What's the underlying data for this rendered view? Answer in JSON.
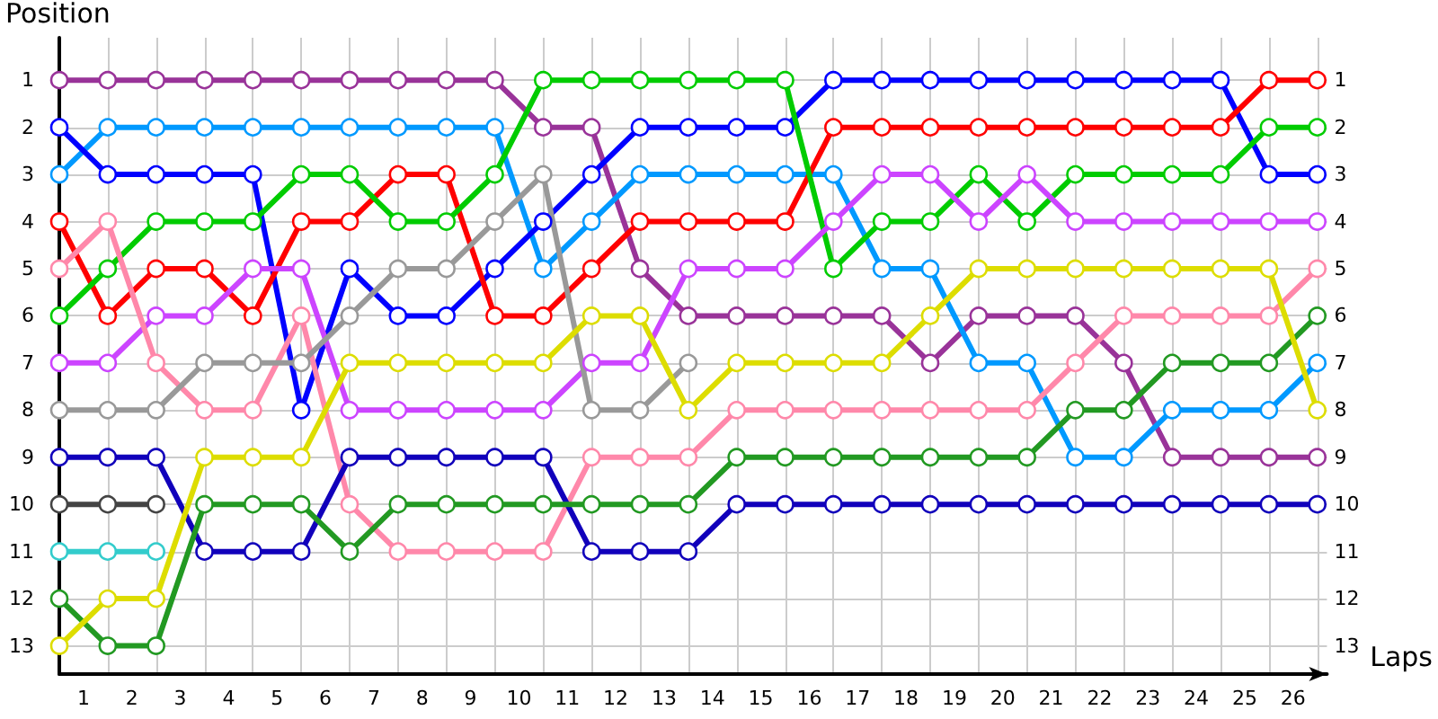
{
  "chart_data": {
    "type": "line",
    "xlabel": "Laps",
    "ylabel": "Position",
    "x": [
      0,
      1,
      2,
      3,
      4,
      5,
      6,
      7,
      8,
      9,
      10,
      11,
      12,
      13,
      14,
      15,
      16,
      17,
      18,
      19,
      20,
      21,
      22,
      23,
      24,
      25,
      26
    ],
    "series": [
      {
        "color": "#993399",
        "values": [
          1,
          1,
          1,
          1,
          1,
          1,
          1,
          1,
          1,
          1,
          2,
          2,
          5,
          6,
          6,
          6,
          6,
          6,
          7,
          6,
          6,
          6,
          7,
          9,
          9,
          9,
          9
        ]
      },
      {
        "color": "#0099ff",
        "values": [
          3,
          2,
          2,
          2,
          2,
          2,
          2,
          2,
          2,
          2,
          5,
          4,
          3,
          3,
          3,
          3,
          3,
          5,
          5,
          7,
          7,
          9,
          9,
          8,
          8,
          8,
          7
        ]
      },
      {
        "color": "#0000ff",
        "values": [
          2,
          3,
          3,
          3,
          3,
          8,
          5,
          6,
          6,
          5,
          4,
          3,
          2,
          2,
          2,
          2,
          1,
          1,
          1,
          1,
          1,
          1,
          1,
          1,
          1,
          3,
          3
        ]
      },
      {
        "color": "#ff0000",
        "values": [
          4,
          6,
          5,
          5,
          6,
          4,
          4,
          3,
          3,
          6,
          6,
          5,
          4,
          4,
          4,
          4,
          2,
          2,
          2,
          2,
          2,
          2,
          2,
          2,
          2,
          1,
          1
        ]
      },
      {
        "color": "#00cc00",
        "values": [
          6,
          5,
          4,
          4,
          4,
          3,
          3,
          4,
          4,
          3,
          1,
          1,
          1,
          1,
          1,
          1,
          5,
          4,
          4,
          3,
          4,
          3,
          3,
          3,
          3,
          2,
          2
        ]
      },
      {
        "color": "#cc44ff",
        "values": [
          7,
          7,
          6,
          6,
          5,
          5,
          8,
          8,
          8,
          8,
          8,
          7,
          7,
          5,
          5,
          5,
          4,
          3,
          3,
          4,
          3,
          4,
          4,
          4,
          4,
          4,
          4
        ]
      },
      {
        "color": "#ff88aa",
        "values": [
          5,
          4,
          7,
          8,
          8,
          6,
          10,
          11,
          11,
          11,
          11,
          9,
          9,
          9,
          8,
          8,
          8,
          8,
          8,
          8,
          8,
          7,
          6,
          6,
          6,
          6,
          5
        ]
      },
      {
        "color": "#999999",
        "values": [
          8,
          8,
          8,
          7,
          7,
          7,
          6,
          5,
          5,
          4,
          3,
          8,
          8,
          7,
          null,
          null,
          null,
          null,
          null,
          null,
          null,
          null,
          null,
          null,
          null,
          null,
          null
        ]
      },
      {
        "color": "#1100bb",
        "values": [
          9,
          9,
          9,
          11,
          11,
          11,
          9,
          9,
          9,
          9,
          9,
          11,
          11,
          11,
          10,
          10,
          10,
          10,
          10,
          10,
          10,
          10,
          10,
          10,
          10,
          10,
          10
        ]
      },
      {
        "color": "#444444",
        "values": [
          10,
          10,
          10,
          null,
          null,
          null,
          null,
          null,
          null,
          null,
          null,
          null,
          null,
          null,
          null,
          null,
          null,
          null,
          null,
          null,
          null,
          null,
          null,
          null,
          null,
          null,
          null
        ]
      },
      {
        "color": "#33cccc",
        "values": [
          11,
          11,
          11,
          null,
          null,
          null,
          null,
          null,
          null,
          null,
          null,
          null,
          null,
          null,
          null,
          null,
          null,
          null,
          null,
          null,
          null,
          null,
          null,
          null,
          null,
          null,
          null
        ]
      },
      {
        "color": "#229922",
        "values": [
          12,
          13,
          13,
          10,
          10,
          10,
          11,
          10,
          10,
          10,
          10,
          10,
          10,
          10,
          9,
          9,
          9,
          9,
          9,
          9,
          9,
          8,
          8,
          7,
          7,
          7,
          6
        ]
      },
      {
        "color": "#dddd00",
        "values": [
          13,
          12,
          12,
          9,
          9,
          9,
          7,
          7,
          7,
          7,
          7,
          6,
          6,
          8,
          7,
          7,
          7,
          7,
          6,
          5,
          5,
          5,
          5,
          5,
          5,
          5,
          8
        ]
      }
    ],
    "xlim": [
      0,
      26.2
    ],
    "xticks": [
      {
        "value": 0,
        "label": null
      },
      {
        "value": 0.5,
        "label": "1"
      },
      {
        "value": 1,
        "label": null
      },
      {
        "value": 1.5,
        "label": "2"
      },
      {
        "value": 2,
        "label": null
      },
      {
        "value": 2.5,
        "label": "3"
      },
      {
        "value": 3,
        "label": null
      },
      {
        "value": 3.5,
        "label": "4"
      },
      {
        "value": 4,
        "label": null
      },
      {
        "value": 4.5,
        "label": "5"
      },
      {
        "value": 5,
        "label": null
      },
      {
        "value": 5.5,
        "label": "6"
      },
      {
        "value": 6,
        "label": null
      },
      {
        "value": 6.5,
        "label": "7"
      },
      {
        "value": 7,
        "label": null
      },
      {
        "value": 7.5,
        "label": "8"
      },
      {
        "value": 8,
        "label": null
      },
      {
        "value": 8.5,
        "label": "9"
      },
      {
        "value": 9,
        "label": null
      },
      {
        "value": 9.5,
        "label": "10"
      },
      {
        "value": 10,
        "label": null
      },
      {
        "value": 10.5,
        "label": "11"
      },
      {
        "value": 11,
        "label": null
      },
      {
        "value": 11.5,
        "label": "12"
      },
      {
        "value": 12,
        "label": null
      },
      {
        "value": 12.5,
        "label": "13"
      },
      {
        "value": 13,
        "label": null
      },
      {
        "value": 13.5,
        "label": "14"
      },
      {
        "value": 14,
        "label": null
      },
      {
        "value": 14.5,
        "label": "15"
      },
      {
        "value": 15,
        "label": null
      },
      {
        "value": 15.5,
        "label": "16"
      },
      {
        "value": 16,
        "label": null
      },
      {
        "value": 16.5,
        "label": "17"
      },
      {
        "value": 17,
        "label": null
      },
      {
        "value": 17.5,
        "label": "18"
      },
      {
        "value": 18,
        "label": null
      },
      {
        "value": 18.5,
        "label": "19"
      },
      {
        "value": 19,
        "label": null
      },
      {
        "value": 19.5,
        "label": "20"
      },
      {
        "value": 20,
        "label": null
      },
      {
        "value": 20.5,
        "label": "21"
      },
      {
        "value": 21,
        "label": null
      },
      {
        "value": 21.5,
        "label": "22"
      },
      {
        "value": 22,
        "label": null
      },
      {
        "value": 22.5,
        "label": "23"
      },
      {
        "value": 23,
        "label": null
      },
      {
        "value": 23.5,
        "label": "24"
      },
      {
        "value": 24,
        "label": null
      },
      {
        "value": 24.5,
        "label": "25"
      },
      {
        "value": 25,
        "label": null
      },
      {
        "value": 25.5,
        "label": "26"
      },
      {
        "value": 26,
        "label": null
      }
    ],
    "ylim": [
      13.6,
      0.1
    ],
    "yticks": [
      1,
      2,
      3,
      4,
      5,
      6,
      7,
      8,
      9,
      10,
      11,
      12,
      13
    ],
    "y2lim": [
      13.6,
      0.1
    ],
    "y2ticks": [
      1,
      2,
      3,
      4,
      5,
      6,
      7,
      8,
      9,
      10,
      11,
      12,
      13
    ],
    "grid": true,
    "marker": "circle",
    "line_style": "solid"
  }
}
